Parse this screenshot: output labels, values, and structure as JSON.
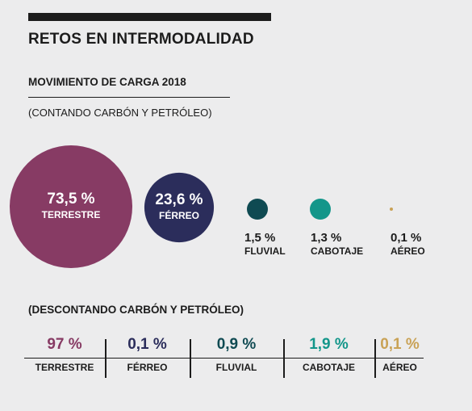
{
  "title": "RETOS EN INTERMODALIDAD",
  "subtitle": "MOVIMIENTO DE CARGA 2018",
  "note_with": "(CONTANDO CARBÓN Y PETRÓLEO)",
  "note_without": "(DESCONTANDO CARBÓN Y PETRÓLEO)",
  "chart_data": [
    {
      "type": "bubble",
      "title": "(CONTANDO CARBÓN Y PETRÓLEO)",
      "categories": [
        "TERRESTRE",
        "FÉRREO",
        "FLUVIAL",
        "CABOTAJE",
        "AÉREO"
      ],
      "values": [
        73.5,
        23.6,
        1.5,
        1.3,
        0.1
      ],
      "value_labels": [
        "73,5 %",
        "23,6 %",
        "1,5 %",
        "1,3 %",
        "0,1 %"
      ],
      "colors": [
        "#873b64",
        "#2b2d5b",
        "#0f4a52",
        "#13968a",
        "#c9a256"
      ]
    },
    {
      "type": "table",
      "title": "(DESCONTANDO CARBÓN Y PETRÓLEO)",
      "categories": [
        "TERRESTRE",
        "FÉRREO",
        "FLUVIAL",
        "CABOTAJE",
        "AÉREO"
      ],
      "values": [
        97,
        0.1,
        0.9,
        1.9,
        0.1
      ],
      "value_labels": [
        "97 %",
        "0,1 %",
        "0,9 %",
        "1,9 %",
        "0,1 %"
      ],
      "colors": [
        "#873b64",
        "#2b2d5b",
        "#0f4a52",
        "#13968a",
        "#c9a256"
      ]
    }
  ]
}
